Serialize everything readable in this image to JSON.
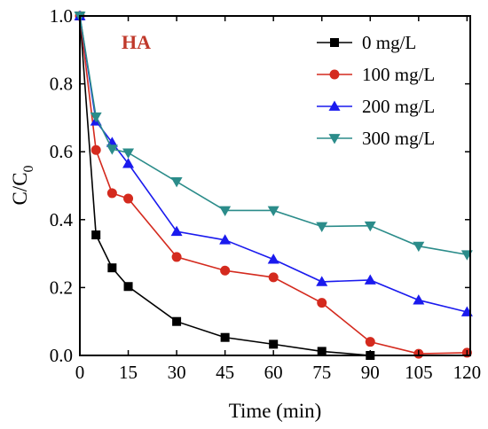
{
  "chart_data": {
    "type": "line",
    "xlabel": "Time (min)",
    "ylabel": "C/C",
    "ylabel_subscript": "0",
    "annotation": "HA",
    "xlim": [
      0,
      121
    ],
    "ylim": [
      0,
      1.0
    ],
    "x_ticks": [
      0,
      15,
      30,
      45,
      60,
      75,
      90,
      105,
      120
    ],
    "x_tick_labels": [
      "0",
      "15",
      "30",
      "45",
      "60",
      "75",
      "90",
      "105",
      "120"
    ],
    "y_ticks": [
      0,
      0.2,
      0.4,
      0.6,
      0.8,
      1.0
    ],
    "y_tick_labels": [
      "0.0",
      "0.2",
      "0.4",
      "0.6",
      "0.8",
      "1.0"
    ],
    "legend_position": "top-right",
    "grid": false,
    "series": [
      {
        "name": "0 mg/L",
        "color": "#000000",
        "marker": "square",
        "x": [
          0,
          5,
          10,
          15,
          30,
          45,
          60,
          75,
          90
        ],
        "y": [
          1.0,
          0.355,
          0.258,
          0.203,
          0.1,
          0.053,
          0.033,
          0.012,
          0.0
        ]
      },
      {
        "name": "100 mg/L",
        "color": "#d42a1e",
        "marker": "circle",
        "x": [
          0,
          5,
          10,
          15,
          30,
          45,
          60,
          75,
          90,
          105,
          120
        ],
        "y": [
          1.0,
          0.605,
          0.478,
          0.462,
          0.29,
          0.25,
          0.23,
          0.155,
          0.04,
          0.005,
          0.008
        ]
      },
      {
        "name": "200 mg/L",
        "color": "#1a1aee",
        "marker": "triangle-up",
        "x": [
          0,
          5,
          10,
          15,
          30,
          45,
          60,
          75,
          90,
          105,
          120
        ],
        "y": [
          1.0,
          0.69,
          0.627,
          0.565,
          0.365,
          0.34,
          0.283,
          0.217,
          0.222,
          0.163,
          0.128
        ]
      },
      {
        "name": "300 mg/L",
        "color": "#2b8c8a",
        "marker": "triangle-down",
        "x": [
          0,
          5,
          10,
          15,
          30,
          45,
          60,
          75,
          90,
          105,
          120
        ],
        "y": [
          1.0,
          0.703,
          0.608,
          0.597,
          0.512,
          0.427,
          0.427,
          0.38,
          0.382,
          0.322,
          0.297
        ]
      }
    ]
  }
}
